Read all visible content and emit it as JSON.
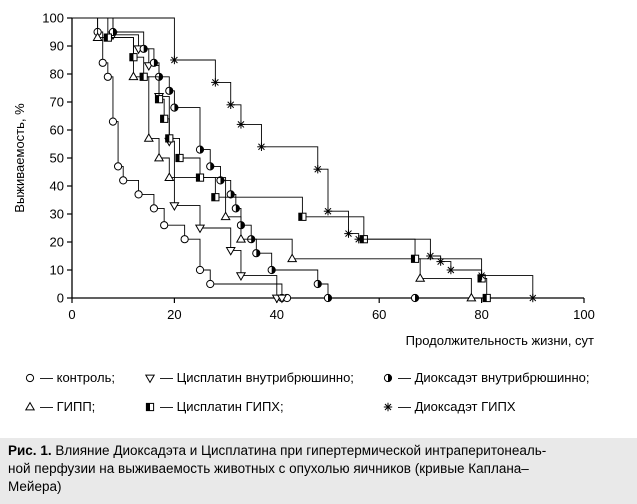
{
  "chart_data": {
    "type": "line",
    "subtype": "kaplan-meier step survival curves",
    "title": "",
    "xlabel": "Продолжительность жизни, сут",
    "ylabel": "Выживаемость, %",
    "xlim": [
      0,
      100
    ],
    "ylim": [
      0,
      100
    ],
    "x_ticks": [
      0,
      20,
      40,
      60,
      80,
      100
    ],
    "y_ticks": [
      0,
      10,
      20,
      30,
      40,
      50,
      60,
      70,
      80,
      90,
      100
    ],
    "grid": false,
    "legend_position": "bottom",
    "series": [
      {
        "name": "— контроль;",
        "marker": "circle",
        "x": [
          5,
          6,
          7,
          8,
          9,
          10,
          13,
          16,
          18,
          22,
          25,
          27,
          41,
          42
        ],
        "y": [
          95,
          84,
          79,
          63,
          47,
          42,
          37,
          32,
          26,
          21,
          10,
          5,
          0,
          0
        ]
      },
      {
        "name": "— Цисплатин внутрибрюшинно;",
        "marker": "triangle-down",
        "x": [
          8,
          13,
          15,
          17,
          19,
          20,
          25,
          31,
          33,
          40,
          41
        ],
        "y": [
          94,
          89,
          83,
          72,
          56,
          33,
          25,
          17,
          8,
          0,
          0
        ]
      },
      {
        "name": "— Диоксадэт внутрибрюшинно;",
        "marker": "half-filled-circle",
        "x": [
          8,
          14,
          16,
          17,
          19,
          20,
          25,
          27,
          29,
          31,
          32,
          33,
          35,
          36,
          39,
          48,
          50,
          67
        ],
        "y": [
          95,
          89,
          84,
          79,
          74,
          68,
          53,
          47,
          42,
          37,
          32,
          26,
          21,
          16,
          10,
          5,
          0,
          0
        ]
      },
      {
        "name": "— ГИПП;",
        "marker": "triangle-up",
        "x": [
          5,
          12,
          15,
          17,
          19,
          30,
          33,
          43,
          68,
          78
        ],
        "y": [
          93,
          79,
          57,
          50,
          43,
          29,
          21,
          14,
          7,
          0
        ]
      },
      {
        "name": "— Цисплатин ГИПХ;",
        "marker": "half-filled-square",
        "x": [
          7,
          12,
          14,
          17,
          18,
          19,
          21,
          25,
          28,
          45,
          57,
          67,
          80,
          81
        ],
        "y": [
          93,
          86,
          79,
          71,
          64,
          57,
          50,
          43,
          36,
          29,
          21,
          14,
          7,
          0
        ]
      },
      {
        "name": "— Диоксадэт ГИПХ",
        "marker": "star",
        "x": [
          20,
          28,
          31,
          33,
          37,
          48,
          50,
          54,
          56,
          70,
          72,
          74,
          80,
          90
        ],
        "y": [
          85,
          77,
          69,
          62,
          54,
          46,
          31,
          23,
          21,
          15,
          13,
          10,
          8,
          0
        ]
      }
    ]
  },
  "caption": {
    "label": "Рис. 1.",
    "line1": " Влияние Диоксадэта и Цисплатина при гипертермической интраперитонеаль-",
    "line2": "ной перфузии на выживаемость животных с опухолью яичников (кривые Каплана–",
    "line3": "Мейера)"
  }
}
